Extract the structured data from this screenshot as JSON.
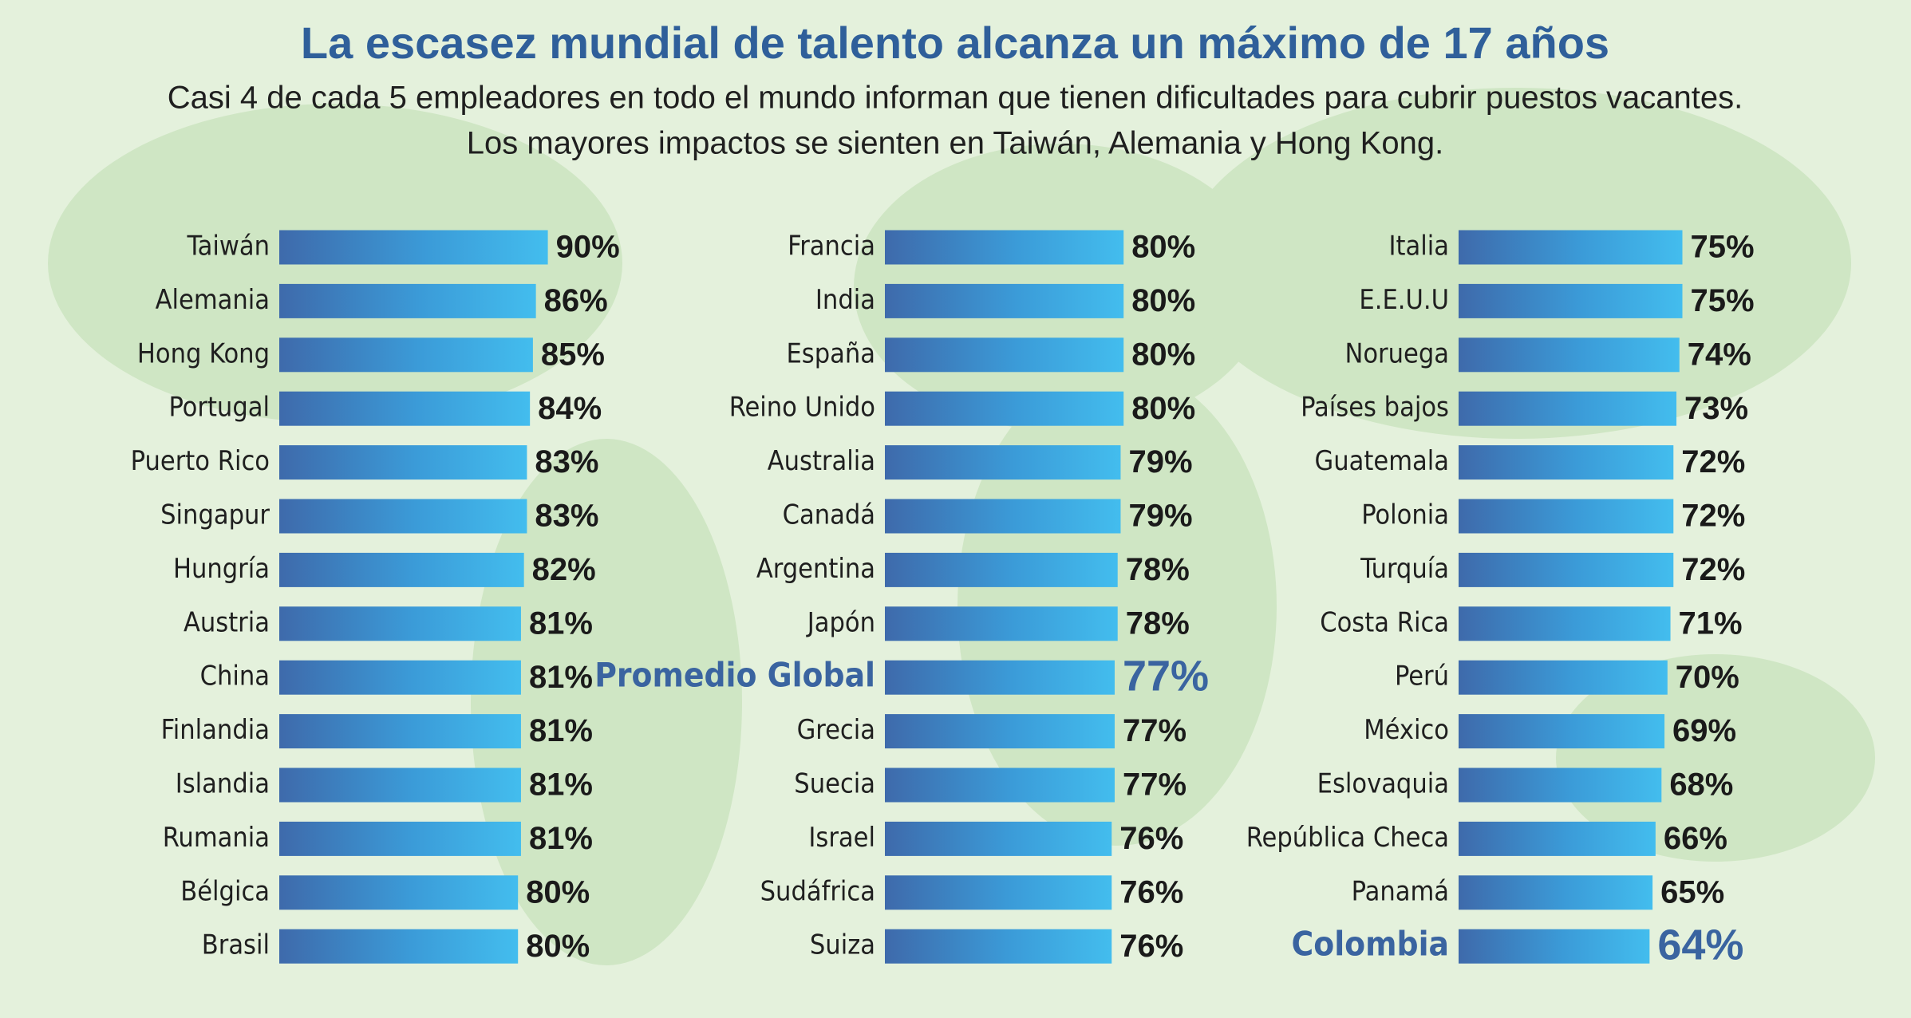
{
  "title": "La escasez mundial de talento alcanza un máximo de 17 años",
  "subtitle": [
    "Casi 4 de cada 5 empleadores en todo el mundo informan que tienen dificultades para cubrir puestos vacantes.",
    "Los mayores impactos se sienten en Taiwán, Alemania y Hong Kong."
  ],
  "chart_data": [
    {
      "type": "bar",
      "orientation": "horizontal",
      "categories": [
        "Taiwán",
        "Alemania",
        "Hong Kong",
        "Portugal",
        "Puerto Rico",
        "Singapur",
        "Hungría",
        "Austria",
        "China",
        "Finlandia",
        "Islandia",
        "Rumania",
        "Bélgica",
        "Brasil"
      ],
      "values": [
        90,
        86,
        85,
        84,
        83,
        83,
        82,
        81,
        81,
        81,
        81,
        81,
        80,
        80
      ],
      "value_labels": [
        "90%",
        "86%",
        "85%",
        "84%",
        "83%",
        "83%",
        "82%",
        "81%",
        "81%",
        "81%",
        "81%",
        "81%",
        "80%",
        "80%"
      ],
      "highlight": [],
      "highlight_color": "#3a64a0"
    },
    {
      "type": "bar",
      "orientation": "horizontal",
      "categories": [
        "Francia",
        "India",
        "España",
        "Reino Unido",
        "Australia",
        "Canadá",
        "Argentina",
        "Japón",
        "Promedio Global",
        "Grecia",
        "Suecia",
        "Israel",
        "Sudáfrica",
        "Suiza"
      ],
      "values": [
        80,
        80,
        80,
        80,
        79,
        79,
        78,
        78,
        77,
        77,
        77,
        76,
        76,
        76
      ],
      "value_labels": [
        "80%",
        "80%",
        "80%",
        "80%",
        "79%",
        "79%",
        "78%",
        "78%",
        "77%",
        "77%",
        "77%",
        "76%",
        "76%",
        "76%"
      ],
      "highlight": [
        8
      ],
      "highlight_color": "#3a64a0"
    },
    {
      "type": "bar",
      "orientation": "horizontal",
      "categories": [
        "Italia",
        "E.E.U.U",
        "Noruega",
        "Países bajos",
        "Guatemala",
        "Polonia",
        "Turquía",
        "Costa Rica",
        "Perú",
        "México",
        "Eslovaquia",
        "República Checa",
        "Panamá",
        "Colombia"
      ],
      "values": [
        75,
        75,
        74,
        73,
        72,
        72,
        72,
        71,
        70,
        69,
        68,
        66,
        65,
        64
      ],
      "value_labels": [
        "75%",
        "75%",
        "74%",
        "73%",
        "72%",
        "72%",
        "72%",
        "71%",
        "70%",
        "69%",
        "68%",
        "66%",
        "65%",
        "64%"
      ],
      "highlight": [
        13
      ],
      "highlight_color": "#3a64a0"
    }
  ]
}
